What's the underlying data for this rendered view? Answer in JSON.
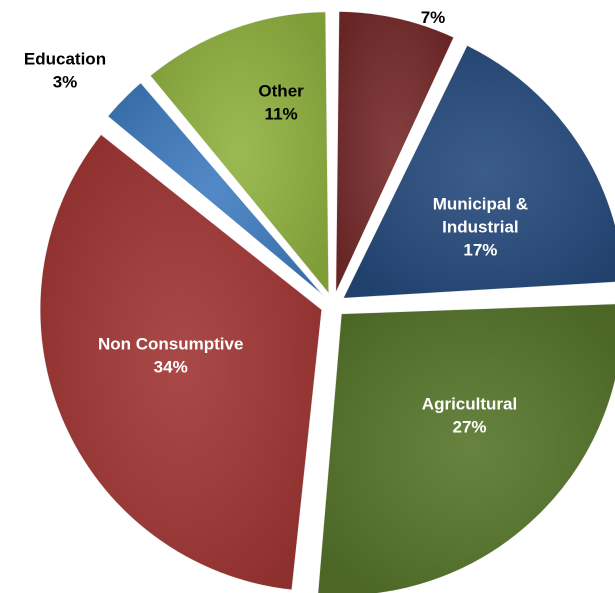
{
  "chart_data": {
    "type": "pie",
    "title": "",
    "slices": [
      {
        "label": "",
        "value_label": "7%",
        "value": 7,
        "color": "#762a2a",
        "label_color": "#000000"
      },
      {
        "label": "Municipal & Industrial",
        "value_label": "17%",
        "value": 17,
        "color": "#254a7c",
        "label_color": "#ffffff"
      },
      {
        "label": "Agricultural",
        "value_label": "27%",
        "value": 27,
        "color": "#56752a",
        "label_color": "#ffffff"
      },
      {
        "label": "Non Consumptive",
        "value_label": "34%",
        "value": 34,
        "color": "#a03533",
        "label_color": "#ffffff"
      },
      {
        "label": "Education",
        "value_label": "3%",
        "value": 3,
        "color": "#3f7cc0",
        "label_color": "#000000"
      },
      {
        "label": "Other",
        "value_label": "11%",
        "value": 11,
        "color": "#90b23f",
        "label_color": "#000000"
      }
    ]
  }
}
